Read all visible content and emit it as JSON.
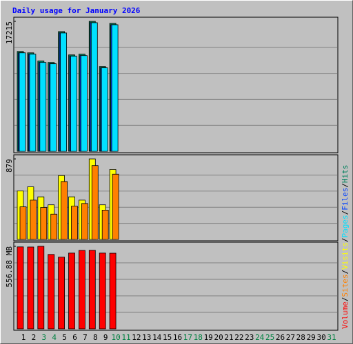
{
  "title": "Daily usage for January 2026",
  "legend_separator": "/",
  "chart_data": [
    {
      "type": "bar",
      "ylim": [
        0,
        17215
      ],
      "yticks": [
        17215
      ],
      "series": [
        {
          "name": "Hits",
          "color": "#00805c",
          "values": [
            13228,
            13047,
            11960,
            11779,
            15856,
            12775,
            12866,
            17215,
            11235,
            16943,
            null,
            null,
            null,
            null,
            null,
            null,
            null,
            null,
            null,
            null,
            null,
            null,
            null,
            null,
            null,
            null,
            null,
            null,
            null,
            null,
            null
          ]
        },
        {
          "name": "Files",
          "color": "#0040ff",
          "values": [
            13050,
            12870,
            11780,
            11600,
            15680,
            12600,
            12690,
            17040,
            11060,
            16770,
            null,
            null,
            null,
            null,
            null,
            null,
            null,
            null,
            null,
            null,
            null,
            null,
            null,
            null,
            null,
            null,
            null,
            null,
            null,
            null,
            null
          ]
        },
        {
          "name": "Pages",
          "color": "#00e0ff",
          "values": [
            13047,
            12866,
            11779,
            11598,
            15675,
            12594,
            12685,
            17034,
            11054,
            16762,
            null,
            null,
            null,
            null,
            null,
            null,
            null,
            null,
            null,
            null,
            null,
            null,
            null,
            null,
            null,
            null,
            null,
            null,
            null,
            null,
            null
          ]
        }
      ]
    },
    {
      "type": "bar",
      "ylim": [
        0,
        879
      ],
      "yticks": [
        879
      ],
      "series": [
        {
          "name": "Visits",
          "color": "#ffff00",
          "values": [
            530,
            574,
            465,
            378,
            697,
            465,
            429,
            879,
            378,
            763,
            null,
            null,
            null,
            null,
            null,
            null,
            null,
            null,
            null,
            null,
            null,
            null,
            null,
            null,
            null,
            null,
            null,
            null,
            null,
            null,
            null
          ]
        },
        {
          "name": "Sites",
          "color": "#ff8000",
          "values": [
            356,
            429,
            349,
            276,
            632,
            363,
            392,
            806,
            320,
            712,
            null,
            null,
            null,
            null,
            null,
            null,
            null,
            null,
            null,
            null,
            null,
            null,
            null,
            null,
            null,
            null,
            null,
            null,
            null,
            null,
            null
          ]
        }
      ]
    },
    {
      "type": "bar",
      "ylim": [
        0,
        556.88
      ],
      "yticks": [
        {
          "value": 556.88,
          "label": "556.88 MB"
        }
      ],
      "categories": [
        "1",
        "2",
        "3",
        "4",
        "5",
        "6",
        "7",
        "8",
        "9",
        "10",
        "11",
        "12",
        "13",
        "14",
        "15",
        "16",
        "17",
        "18",
        "19",
        "20",
        "21",
        "22",
        "23",
        "24",
        "25",
        "26",
        "27",
        "28",
        "29",
        "30",
        "31"
      ],
      "category_colors": [
        "#000000",
        "#000000",
        "#008040",
        "#008040",
        "#000000",
        "#000000",
        "#000000",
        "#000000",
        "#000000",
        "#008040",
        "#008040",
        "#000000",
        "#000000",
        "#000000",
        "#000000",
        "#000000",
        "#008040",
        "#008040",
        "#000000",
        "#000000",
        "#000000",
        "#000000",
        "#000000",
        "#008040",
        "#008040",
        "#000000",
        "#000000",
        "#000000",
        "#000000",
        "#000000",
        "#008040"
      ],
      "series": [
        {
          "name": "Volume",
          "color": "#ff0000",
          "values": [
            553.1,
            552.3,
            556.88,
            502.1,
            483.8,
            511.2,
            529.5,
            530.2,
            511.2,
            510.4,
            null,
            null,
            null,
            null,
            null,
            null,
            null,
            null,
            null,
            null,
            null,
            null,
            null,
            null,
            null,
            null,
            null,
            null,
            null,
            null,
            null
          ]
        }
      ]
    }
  ]
}
